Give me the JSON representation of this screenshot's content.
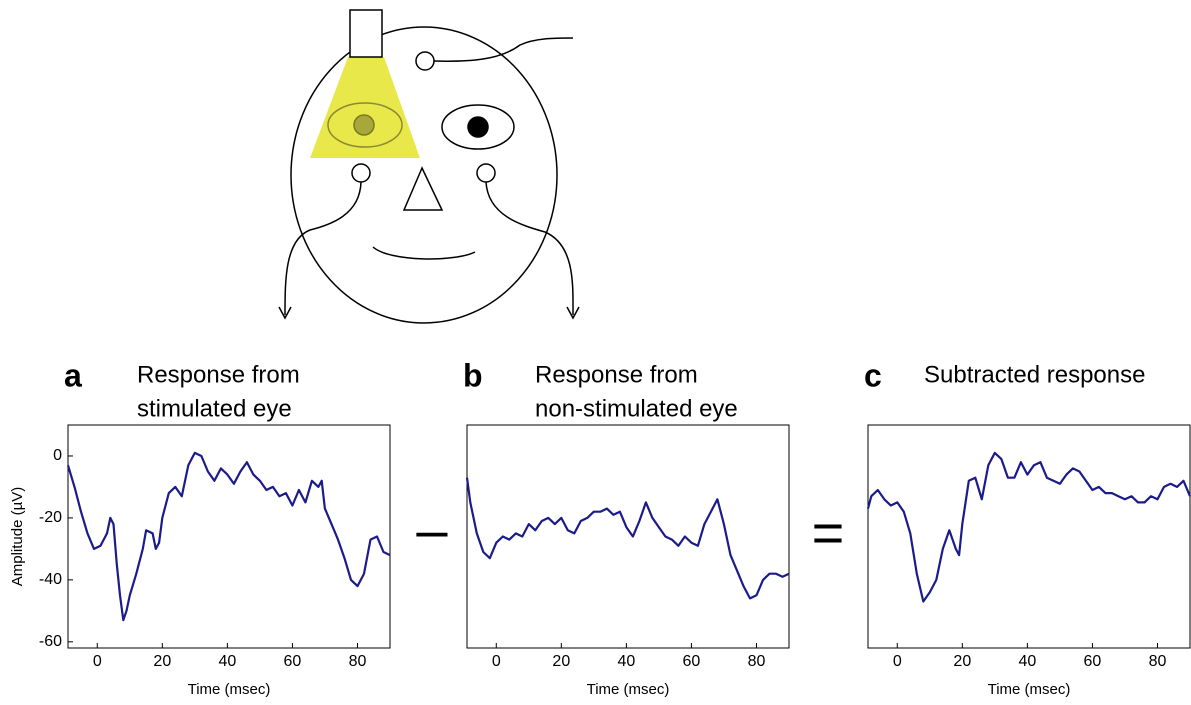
{
  "chart_data": [
    {
      "type": "line",
      "panel_label": "a",
      "title_lines": [
        "Response from",
        "stimulated eye"
      ],
      "xlabel": "Time (msec)",
      "ylabel": "Amplitude (µV)",
      "color": "#1b1b8a",
      "xlim": [
        -9,
        90
      ],
      "ylim": [
        -62,
        10
      ],
      "xticks": [
        0,
        20,
        40,
        60,
        80
      ],
      "yticks": [
        -60,
        -40,
        -20,
        0
      ],
      "x": [
        -9,
        -7,
        -5,
        -3,
        -1,
        1,
        3,
        4,
        5,
        6,
        7,
        8,
        9,
        10,
        12,
        14,
        15,
        17,
        18,
        19,
        20,
        22,
        24,
        26,
        28,
        30,
        32,
        34,
        36,
        38,
        40,
        42,
        44,
        46,
        48,
        50,
        52,
        54,
        56,
        58,
        60,
        62,
        64,
        66,
        68,
        69,
        70,
        72,
        74,
        76,
        78,
        80,
        82,
        84,
        86,
        88,
        90
      ],
      "values": [
        -3,
        -10,
        -18,
        -25,
        -30,
        -29,
        -25,
        -20,
        -22,
        -35,
        -45,
        -53,
        -50,
        -45,
        -38,
        -30,
        -24,
        -25,
        -30,
        -28,
        -20,
        -12,
        -10,
        -13,
        -3,
        1,
        0,
        -5,
        -8,
        -4,
        -6,
        -9,
        -5,
        -2,
        -6,
        -8,
        -11,
        -10,
        -13,
        -12,
        -16,
        -11,
        -15,
        -8,
        -10,
        -8,
        -17,
        -22,
        -27,
        -33,
        -40,
        -42,
        -38,
        -27,
        -26,
        -31,
        -32
      ]
    },
    {
      "type": "line",
      "panel_label": "b",
      "title_lines": [
        "Response from",
        "non-stimulated eye"
      ],
      "xlabel": "Time (msec)",
      "color": "#1b1b8a",
      "xlim": [
        -9,
        90
      ],
      "ylim": [
        -62,
        10
      ],
      "xticks": [
        0,
        20,
        40,
        60,
        80
      ],
      "x": [
        -9,
        -8,
        -6,
        -4,
        -2,
        0,
        2,
        4,
        6,
        8,
        10,
        12,
        14,
        16,
        18,
        20,
        22,
        24,
        26,
        28,
        30,
        32,
        34,
        36,
        38,
        40,
        42,
        44,
        46,
        48,
        50,
        52,
        54,
        56,
        58,
        60,
        62,
        64,
        66,
        68,
        70,
        72,
        74,
        76,
        78,
        80,
        82,
        84,
        86,
        88,
        90
      ],
      "values": [
        -7,
        -15,
        -25,
        -31,
        -33,
        -28,
        -26,
        -27,
        -25,
        -26,
        -22,
        -24,
        -21,
        -20,
        -22,
        -20,
        -24,
        -25,
        -21,
        -20,
        -18,
        -18,
        -17,
        -19,
        -18,
        -23,
        -26,
        -21,
        -15,
        -20,
        -23,
        -26,
        -27,
        -29,
        -26,
        -28,
        -29,
        -22,
        -18,
        -14,
        -22,
        -32,
        -37,
        -42,
        -46,
        -45,
        -40,
        -38,
        -38,
        -39,
        -38
      ]
    },
    {
      "type": "line",
      "panel_label": "c",
      "title_lines": [
        "Subtracted response"
      ],
      "xlabel": "Time (msec)",
      "color": "#1b1b8a",
      "xlim": [
        -9,
        90
      ],
      "ylim": [
        -62,
        10
      ],
      "xticks": [
        0,
        20,
        40,
        60,
        80
      ],
      "x": [
        -9,
        -8,
        -6,
        -4,
        -2,
        0,
        2,
        4,
        6,
        8,
        10,
        12,
        14,
        16,
        18,
        19,
        20,
        22,
        24,
        26,
        28,
        30,
        32,
        34,
        36,
        38,
        40,
        42,
        44,
        46,
        48,
        50,
        52,
        54,
        56,
        58,
        60,
        62,
        64,
        66,
        68,
        70,
        72,
        74,
        76,
        78,
        80,
        82,
        84,
        86,
        88,
        90
      ],
      "values": [
        -17,
        -13,
        -11,
        -14,
        -16,
        -15,
        -18,
        -25,
        -38,
        -47,
        -44,
        -40,
        -30,
        -24,
        -30,
        -32,
        -22,
        -8,
        -7,
        -14,
        -3,
        1,
        -1,
        -7,
        -7,
        -2,
        -6,
        -3,
        -2,
        -7,
        -8,
        -9,
        -6,
        -4,
        -5,
        -8,
        -11,
        -10,
        -12,
        -12,
        -13,
        -14,
        -13,
        -15,
        -15,
        -13,
        -14,
        -10,
        -9,
        -10,
        -8,
        -13
      ]
    }
  ],
  "operators": [
    "–",
    "="
  ]
}
